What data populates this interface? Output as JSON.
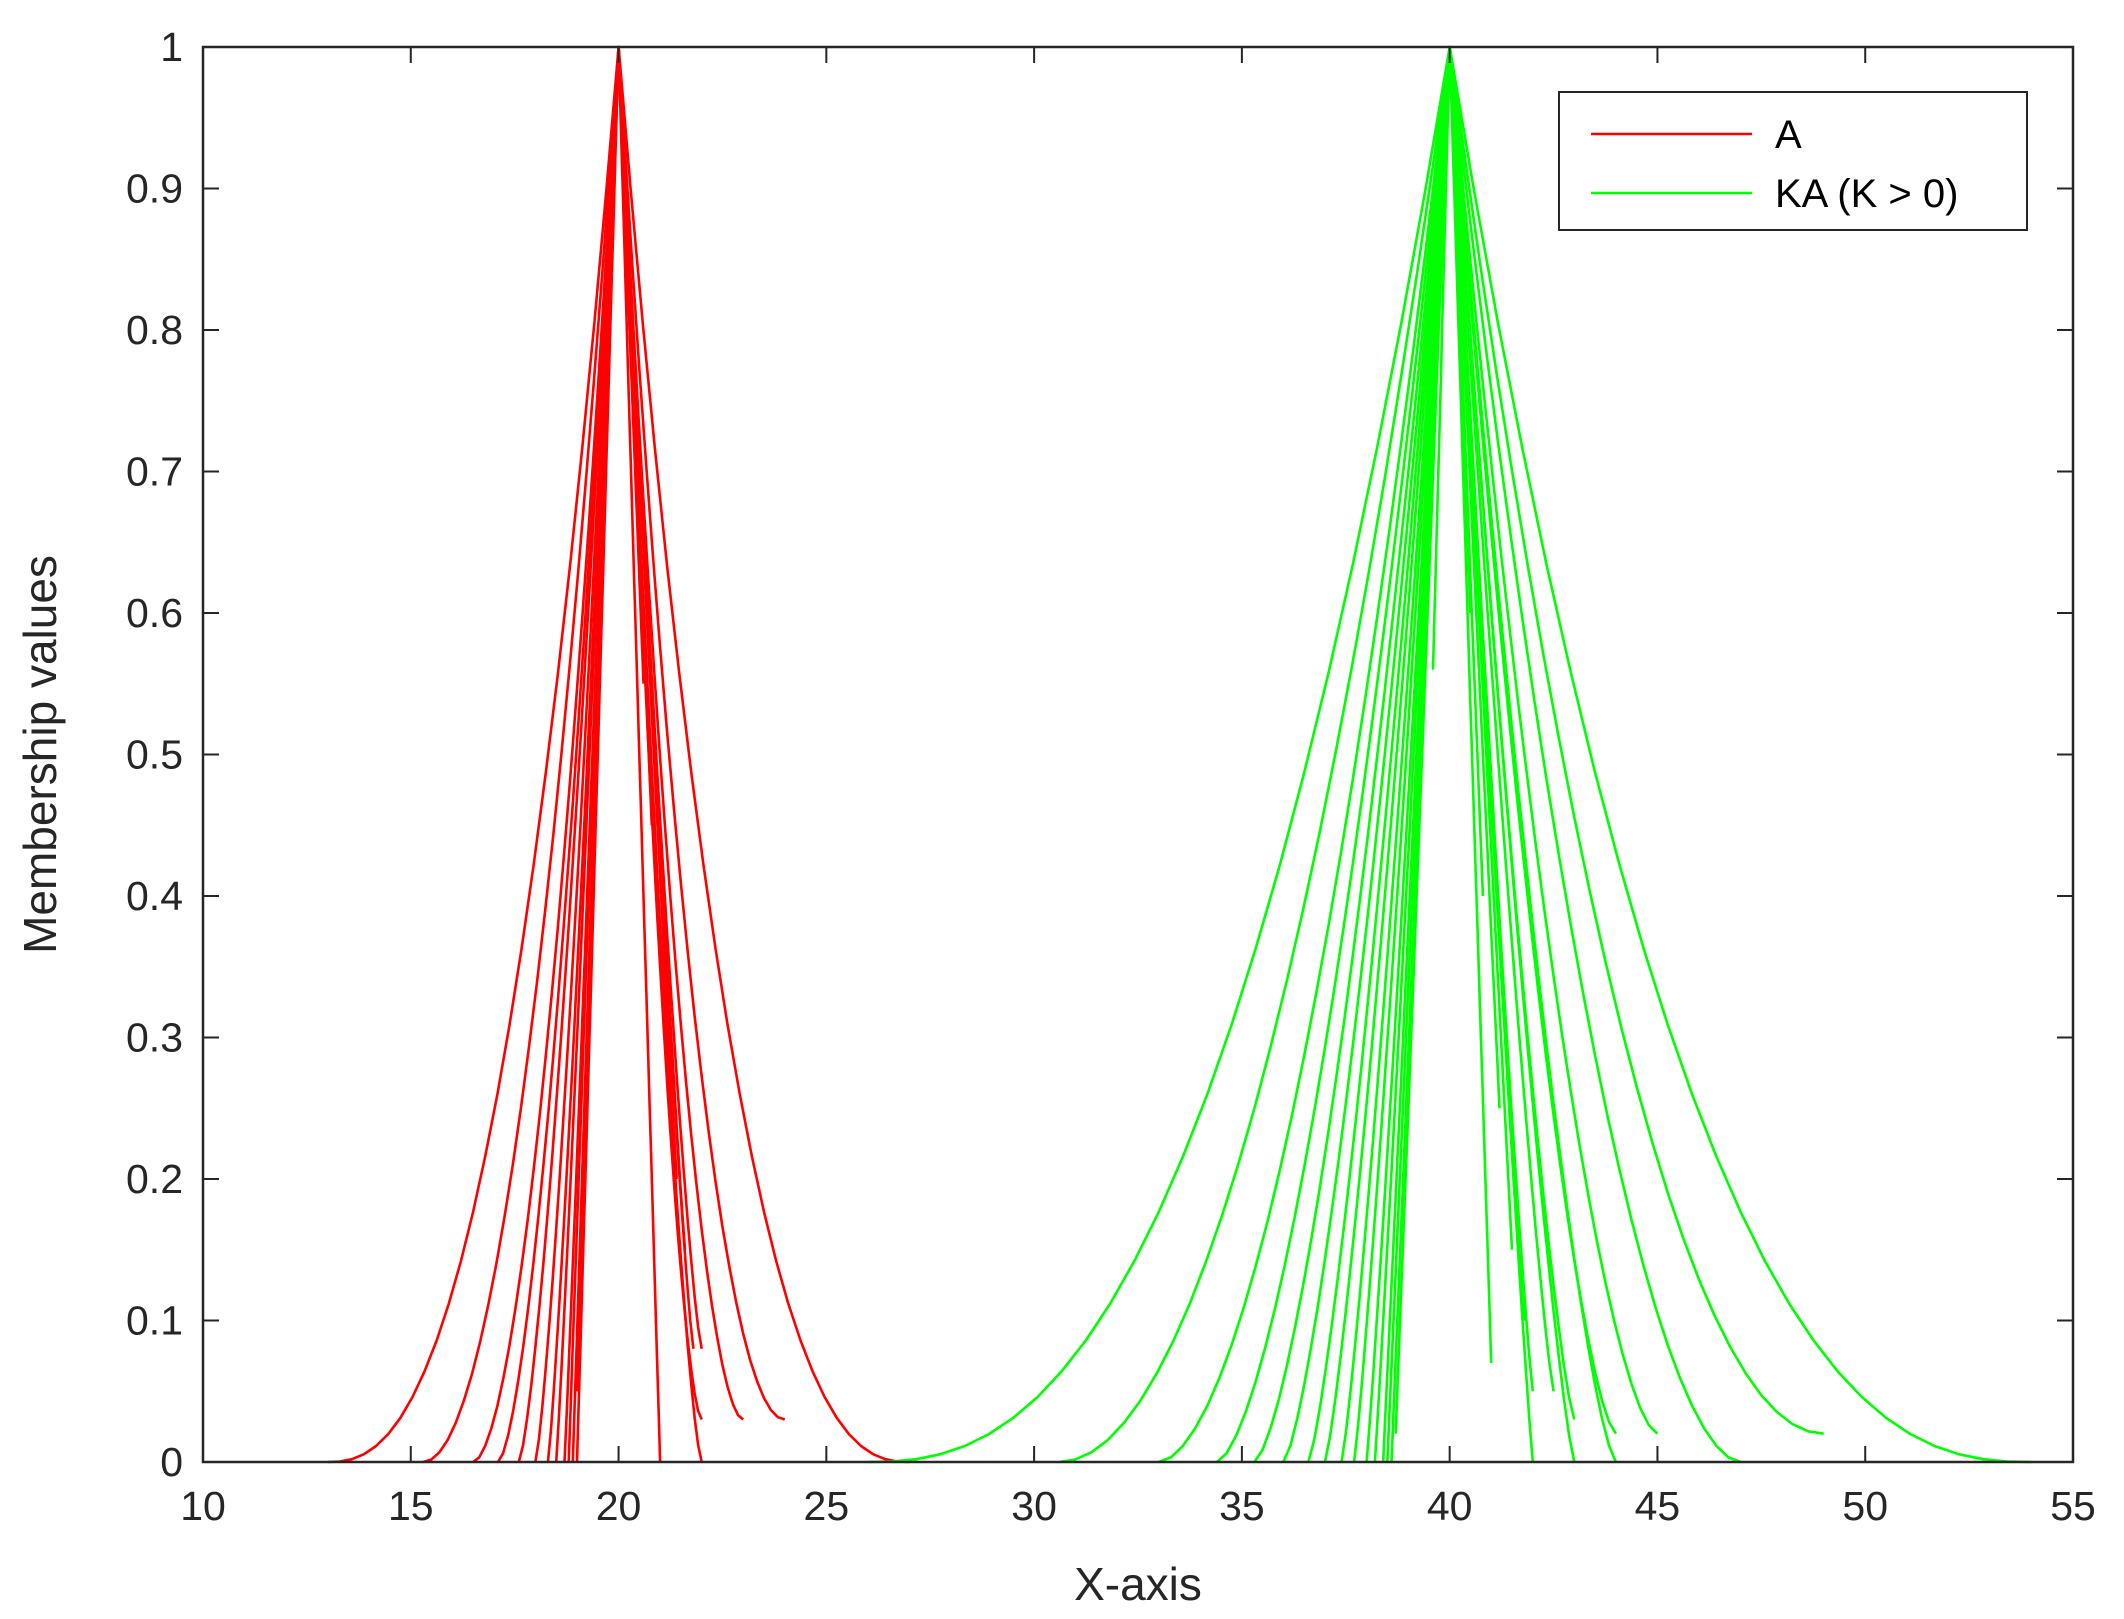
{
  "chart_data": {
    "type": "line",
    "xlabel": "X-axis",
    "ylabel": "Membership values",
    "xlim": [
      10,
      55
    ],
    "ylim": [
      0,
      1
    ],
    "xticks": [
      10,
      15,
      20,
      25,
      30,
      35,
      40,
      45,
      50,
      55
    ],
    "yticks": [
      0,
      0.1,
      0.2,
      0.3,
      0.4,
      0.5,
      0.6,
      0.7,
      0.8,
      0.9,
      1
    ],
    "ytick_labels": [
      "0",
      "0.1",
      "0.2",
      "0.3",
      "0.4",
      "0.5",
      "0.6",
      "0.7",
      "0.8",
      "0.9",
      "1"
    ],
    "grid": false,
    "legend_position": "top-right",
    "legend": [
      {
        "label": "A",
        "color": "#ff0000"
      },
      {
        "label": "KA (K > 0)",
        "color": "#00ff00"
      }
    ],
    "series": [
      {
        "name": "A",
        "color": "#ff0000",
        "peak_x": 20,
        "curves": [
          {
            "left": [
              13,
              0
            ],
            "right": [
              27,
              0
            ],
            "shape": 2.5
          },
          {
            "left": [
              15.3,
              0
            ],
            "right": [
              24,
              0.03
            ],
            "shape": 2.0
          },
          {
            "left": [
              16.5,
              0
            ],
            "right": [
              23,
              0.03
            ],
            "shape": 1.8
          },
          {
            "left": [
              17.1,
              0
            ],
            "right": [
              22,
              0.03
            ],
            "shape": 1.6
          },
          {
            "left": [
              17.6,
              0
            ],
            "right": [
              22,
              0
            ],
            "shape": 1.4
          },
          {
            "left": [
              18.0,
              0
            ],
            "right": [
              22,
              0.08
            ],
            "shape": 1.3
          },
          {
            "left": [
              18.3,
              0
            ],
            "right": [
              21.8,
              0.08
            ],
            "shape": 1.2
          },
          {
            "left": [
              18.5,
              0
            ],
            "right": [
              21.6,
              0.15
            ],
            "shape": 1.1
          },
          {
            "left": [
              18.7,
              0
            ],
            "right": [
              21.4,
              0.2
            ],
            "shape": 1.05
          },
          {
            "left": [
              18.8,
              0
            ],
            "right": [
              21.2,
              0.3
            ],
            "shape": 1.0
          },
          {
            "left": [
              18.9,
              0
            ],
            "right": [
              21,
              0
            ],
            "shape": 1.0
          },
          {
            "left": [
              19.0,
              0
            ],
            "right": [
              20.8,
              0.45
            ],
            "shape": 1.0
          },
          {
            "left": [
              19.0,
              0.05
            ],
            "right": [
              20.6,
              0.55
            ],
            "shape": 1.0
          }
        ]
      },
      {
        "name": "KA (K > 0)",
        "color": "#00ff00",
        "peak_x": 40,
        "curves": [
          {
            "left": [
              26,
              0
            ],
            "right": [
              54,
              0
            ],
            "shape": 2.5
          },
          {
            "left": [
              30.6,
              0
            ],
            "right": [
              49,
              0.02
            ],
            "shape": 2.0
          },
          {
            "left": [
              33,
              0
            ],
            "right": [
              47,
              0
            ],
            "shape": 1.8
          },
          {
            "left": [
              34.4,
              0
            ],
            "right": [
              45,
              0.02
            ],
            "shape": 1.6
          },
          {
            "left": [
              35.3,
              0
            ],
            "right": [
              44,
              0.02
            ],
            "shape": 1.5
          },
          {
            "left": [
              36.0,
              0
            ],
            "right": [
              44,
              0
            ],
            "shape": 1.4
          },
          {
            "left": [
              36.6,
              0
            ],
            "right": [
              43,
              0.03
            ],
            "shape": 1.3
          },
          {
            "left": [
              37.0,
              0
            ],
            "right": [
              43,
              0
            ],
            "shape": 1.25
          },
          {
            "left": [
              37.4,
              0
            ],
            "right": [
              42.5,
              0.05
            ],
            "shape": 1.2
          },
          {
            "left": [
              37.7,
              0
            ],
            "right": [
              42,
              0.05
            ],
            "shape": 1.15
          },
          {
            "left": [
              38.0,
              0
            ],
            "right": [
              42,
              0
            ],
            "shape": 1.1
          },
          {
            "left": [
              38.2,
              0
            ],
            "right": [
              41.8,
              0.1
            ],
            "shape": 1.05
          },
          {
            "left": [
              38.4,
              0
            ],
            "right": [
              41.5,
              0.15
            ],
            "shape": 1.0
          },
          {
            "left": [
              38.5,
              0
            ],
            "right": [
              41.2,
              0.25
            ],
            "shape": 1.0
          },
          {
            "left": [
              38.6,
              0
            ],
            "right": [
              41,
              0.07
            ],
            "shape": 1.0
          },
          {
            "left": [
              38.7,
              0.02
            ],
            "right": [
              40.8,
              0.4
            ],
            "shape": 1.0
          },
          {
            "left": [
              39.6,
              0.56
            ],
            "right": [
              40.5,
              0.6
            ],
            "shape": 1.0
          }
        ]
      }
    ]
  }
}
